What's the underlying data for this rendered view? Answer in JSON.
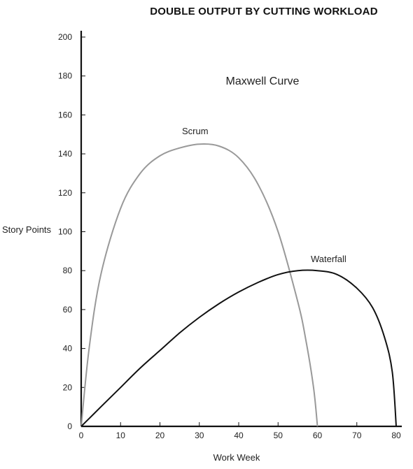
{
  "chart_data": {
    "type": "line",
    "title": "DOUBLE OUTPUT BY CUTTING WORKLOAD",
    "subtitle": "Maxwell Curve",
    "xlabel": "Work Week",
    "ylabel": "Story Points",
    "xlim": [
      0,
      80
    ],
    "ylim": [
      0,
      200
    ],
    "x_ticks": [
      0,
      10,
      20,
      30,
      40,
      50,
      60,
      70,
      80
    ],
    "y_ticks": [
      0,
      20,
      40,
      60,
      80,
      100,
      120,
      140,
      160,
      180,
      200
    ],
    "grid": false,
    "series": [
      {
        "name": "Scrum",
        "color": "#999999",
        "x": [
          0,
          2,
          5,
          10,
          15,
          20,
          25,
          30,
          35,
          40,
          45,
          50,
          55,
          57,
          59,
          60
        ],
        "y": [
          0,
          40,
          78,
          112,
          130,
          139,
          143,
          145,
          144,
          138,
          124,
          100,
          64,
          45,
          20,
          0
        ]
      },
      {
        "name": "Waterfall",
        "color": "#111111",
        "x": [
          0,
          5,
          10,
          15,
          20,
          25,
          30,
          35,
          40,
          45,
          50,
          55,
          60,
          65,
          70,
          74,
          77,
          79,
          80
        ],
        "y": [
          0,
          10,
          20,
          30,
          39,
          48,
          56,
          63,
          69,
          74,
          78,
          80,
          80,
          78,
          71,
          61,
          46,
          28,
          0
        ]
      }
    ]
  }
}
